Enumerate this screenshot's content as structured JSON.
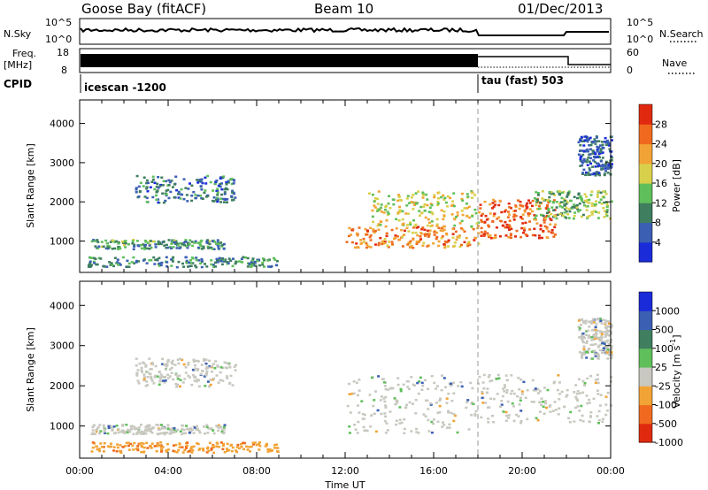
{
  "header": {
    "site": "Goose Bay (fitACF)",
    "beam": "Beam 10",
    "date": "01/Dec/2013"
  },
  "top_panels": {
    "nsky_label": "N.Sky",
    "nsky_ticks": [
      "10^5",
      "10^0"
    ],
    "nsearch_label": "N.Search",
    "nsearch_ticks": [
      "10^5",
      "10^0"
    ],
    "freq_label": "Freq.",
    "freq_unit": "[MHz]",
    "freq_ticks": [
      "18",
      "8"
    ],
    "nave_label": "Nave",
    "nave_ticks": [
      "60",
      "0"
    ],
    "cpid_label": "CPID",
    "cpid_segments": [
      {
        "label": "icescan -1200",
        "start_hour": 0,
        "end_hour": 18
      },
      {
        "label": "tau (fast) 503",
        "start_hour": 18,
        "end_hour": 24
      }
    ]
  },
  "chart_data": [
    {
      "type": "heatmap",
      "name": "power",
      "ylabel": "Slant Range [km]",
      "xlabel": "",
      "xlim": [
        0,
        24
      ],
      "ylim": [
        200,
        4600
      ],
      "yticks": [
        "1000",
        "2000",
        "3000",
        "4000"
      ],
      "colorbar": {
        "label": "Power [dB]",
        "ticks": [
          "4",
          "8",
          "12",
          "16",
          "20",
          "24",
          "28"
        ],
        "colors": [
          "#1a2bd9",
          "#3a5fb3",
          "#3f7e5f",
          "#5fbf5a",
          "#d8d04a",
          "#f2a335",
          "#ef6a1e",
          "#e02a10"
        ]
      },
      "regions": [
        {
          "t0": 0.5,
          "t1": 6.5,
          "r0": 820,
          "r1": 1060,
          "level": 0.35
        },
        {
          "t0": 0.3,
          "t1": 9.0,
          "r0": 360,
          "r1": 620,
          "level": 0.3
        },
        {
          "t0": 2.5,
          "t1": 7.0,
          "r0": 2000,
          "r1": 2700,
          "level": 0.25
        },
        {
          "t0": 12.0,
          "t1": 18.0,
          "r0": 850,
          "r1": 1400,
          "level": 0.75
        },
        {
          "t0": 13.0,
          "t1": 18.0,
          "r0": 1400,
          "r1": 2300,
          "level": 0.55
        },
        {
          "t0": 18.0,
          "t1": 21.5,
          "r0": 1100,
          "r1": 2100,
          "level": 0.85
        },
        {
          "t0": 20.5,
          "t1": 24.0,
          "r0": 1600,
          "r1": 2300,
          "level": 0.45
        },
        {
          "t0": 22.5,
          "t1": 24.0,
          "r0": 2700,
          "r1": 3700,
          "level": 0.2
        }
      ]
    },
    {
      "type": "heatmap",
      "name": "velocity",
      "ylabel": "Slant Range [km]",
      "xlabel": "Time UT",
      "xlim": [
        0,
        24
      ],
      "ylim": [
        200,
        4600
      ],
      "yticks": [
        "1000",
        "2000",
        "3000",
        "4000"
      ],
      "xticks": [
        "00:00",
        "04:00",
        "08:00",
        "12:00",
        "16:00",
        "20:00",
        "00:00"
      ],
      "colorbar": {
        "label": "Velocity [m s",
        "label_sup": "-1",
        "label_close": "]",
        "ticks": [
          "1000",
          "500",
          "100",
          "25",
          "-25",
          "-100",
          "-500",
          "-1000"
        ],
        "colors": [
          "#1a2bd9",
          "#3a5fb3",
          "#3f7e5f",
          "#5fbf5a",
          "#c8c8c0",
          "#f2a335",
          "#ef6a1e",
          "#e02a10"
        ]
      },
      "regions": [
        {
          "t0": 0.5,
          "t1": 6.5,
          "r0": 820,
          "r1": 1060,
          "level": "gray"
        },
        {
          "t0": 0.3,
          "t1": 9.0,
          "r0": 360,
          "r1": 620,
          "level": "orange"
        },
        {
          "t0": 2.5,
          "t1": 7.0,
          "r0": 2000,
          "r1": 2700,
          "level": "gray"
        },
        {
          "t0": 12.0,
          "t1": 18.0,
          "r0": 850,
          "r1": 2300,
          "level": "gray"
        },
        {
          "t0": 18.0,
          "t1": 24.0,
          "r0": 1100,
          "r1": 2300,
          "level": "gray"
        },
        {
          "t0": 22.5,
          "t1": 24.0,
          "r0": 2700,
          "r1": 3700,
          "level": "gray"
        }
      ]
    }
  ]
}
